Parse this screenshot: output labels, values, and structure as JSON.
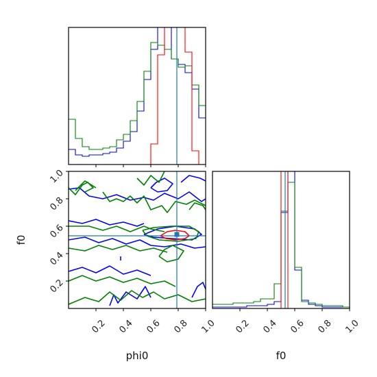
{
  "figure": {
    "type": "corner_plot"
  },
  "colors": {
    "blue": "#0000ff",
    "green": "#008000",
    "red": "#ff0000",
    "truth": "#1f77b4"
  },
  "chart_data": [
    {
      "id": "hist-phi0",
      "type": "histogram_step",
      "xlim": [
        0.0,
        1.0
      ],
      "xticks": [
        0.2,
        0.4,
        0.6,
        0.8,
        1.0
      ],
      "xtick_labels": [],
      "truth_x": 0.79,
      "series": [
        {
          "color": "blue",
          "bin_edges": [
            0.0,
            0.05,
            0.1,
            0.15,
            0.2,
            0.25,
            0.3,
            0.35,
            0.4,
            0.45,
            0.5,
            0.55,
            0.6,
            0.65,
            0.7,
            0.75,
            0.8,
            0.85,
            0.9,
            0.95,
            1.0
          ],
          "counts": [
            0.11,
            0.07,
            0.06,
            0.07,
            0.07,
            0.08,
            0.09,
            0.12,
            0.17,
            0.24,
            0.39,
            0.62,
            0.84,
            1.2,
            1.2,
            0.77,
            0.73,
            0.67,
            0.55,
            0.34
          ]
        },
        {
          "color": "green",
          "bin_edges": [
            0.0,
            0.05,
            0.1,
            0.15,
            0.2,
            0.25,
            0.3,
            0.35,
            0.4,
            0.45,
            0.5,
            0.55,
            0.6,
            0.65,
            0.7,
            0.75,
            0.8,
            0.85,
            0.9,
            0.95,
            1.0
          ],
          "counts": [
            0.33,
            0.19,
            0.13,
            0.11,
            0.11,
            0.12,
            0.13,
            0.18,
            0.22,
            0.32,
            0.46,
            0.68,
            0.89,
            0.87,
            0.84,
            0.77,
            0.71,
            0.72,
            0.58,
            0.43
          ]
        },
        {
          "color": "red",
          "bin_edges": [
            0.0,
            0.05,
            0.1,
            0.15,
            0.2,
            0.25,
            0.3,
            0.35,
            0.4,
            0.45,
            0.5,
            0.55,
            0.6,
            0.65,
            0.7,
            0.75,
            0.8,
            0.85,
            0.9,
            0.95,
            1.0
          ],
          "counts": [
            0,
            0,
            0,
            0,
            0,
            0,
            0,
            0,
            0,
            0,
            0,
            0,
            0.15,
            0.8,
            1.2,
            1.2,
            1.2,
            0.82,
            0.1,
            0
          ]
        }
      ]
    },
    {
      "id": "contour-phi0-f0",
      "type": "contour",
      "xlim": [
        0.0,
        1.0
      ],
      "ylim": [
        0.0,
        1.0
      ],
      "xticks": [
        0.2,
        0.4,
        0.6,
        0.8,
        1.0
      ],
      "yticks": [
        0.2,
        0.4,
        0.6,
        0.8,
        1.0
      ],
      "ytick_labels": [
        "0.2",
        "0.4",
        "0.6",
        "0.8",
        "1.0"
      ],
      "ylabel": "f0",
      "truth": {
        "x": 0.79,
        "y": 0.53
      },
      "marker": {
        "x": 0.79,
        "y": 0.54
      },
      "contours": [
        {
          "color": "blue",
          "points": [
            [
              0.0,
              0.87
            ],
            [
              0.08,
              0.88
            ],
            [
              0.15,
              0.82
            ],
            [
              0.25,
              0.8
            ],
            [
              0.35,
              0.83
            ],
            [
              0.45,
              0.79
            ],
            [
              0.55,
              0.81
            ],
            [
              0.62,
              0.79
            ],
            [
              0.7,
              0.84
            ],
            [
              0.8,
              0.8
            ],
            [
              0.88,
              0.85
            ],
            [
              0.97,
              0.78
            ],
            [
              1.0,
              0.8
            ]
          ]
        },
        {
          "color": "blue",
          "points": [
            [
              0.0,
              0.64
            ],
            [
              0.1,
              0.62
            ],
            [
              0.2,
              0.65
            ],
            [
              0.3,
              0.61
            ],
            [
              0.4,
              0.63
            ],
            [
              0.5,
              0.6
            ],
            [
              0.55,
              0.62
            ]
          ]
        },
        {
          "color": "blue",
          "points": [
            [
              0.0,
              0.5
            ],
            [
              0.12,
              0.52
            ],
            [
              0.22,
              0.48
            ],
            [
              0.32,
              0.51
            ],
            [
              0.42,
              0.47
            ],
            [
              0.52,
              0.5
            ],
            [
              0.6,
              0.46
            ],
            [
              0.7,
              0.45
            ],
            [
              0.82,
              0.47
            ],
            [
              0.92,
              0.44
            ],
            [
              1.0,
              0.45
            ]
          ]
        },
        {
          "color": "blue",
          "points": [
            [
              0.0,
              0.27
            ],
            [
              0.1,
              0.3
            ],
            [
              0.2,
              0.26
            ],
            [
              0.3,
              0.31
            ],
            [
              0.4,
              0.25
            ],
            [
              0.5,
              0.28
            ],
            [
              0.6,
              0.24
            ]
          ]
        },
        {
          "color": "blue",
          "points": [
            [
              0.3,
              0.02
            ],
            [
              0.33,
              0.1
            ],
            [
              0.36,
              0.04
            ],
            [
              0.42,
              0.12
            ],
            [
              0.5,
              0.07
            ],
            [
              0.56,
              0.16
            ],
            [
              0.6,
              0.08
            ]
          ]
        },
        {
          "color": "blue",
          "points": [
            [
              0.9,
              0.08
            ],
            [
              0.94,
              0.16
            ],
            [
              0.98,
              0.19
            ],
            [
              1.0,
              0.14
            ]
          ]
        },
        {
          "color": "blue",
          "points": [
            [
              0.55,
              0.54
            ],
            [
              0.65,
              0.58
            ],
            [
              0.78,
              0.6
            ],
            [
              0.92,
              0.58
            ],
            [
              0.97,
              0.54
            ],
            [
              0.9,
              0.5
            ],
            [
              0.75,
              0.51
            ],
            [
              0.62,
              0.52
            ],
            [
              0.55,
              0.54
            ]
          ]
        },
        {
          "color": "blue",
          "points": [
            [
              0.38,
              0.35
            ],
            [
              0.38,
              0.38
            ]
          ]
        },
        {
          "color": "blue",
          "points": [
            [
              0.6,
              0.88
            ],
            [
              0.64,
              0.92
            ],
            [
              0.7,
              0.95
            ],
            [
              0.76,
              0.91
            ],
            [
              0.72,
              0.86
            ],
            [
              0.65,
              0.85
            ],
            [
              0.6,
              0.88
            ]
          ]
        },
        {
          "color": "blue",
          "points": [
            [
              0.82,
              0.92
            ],
            [
              0.88,
              0.97
            ],
            [
              0.96,
              0.95
            ],
            [
              1.0,
              0.93
            ]
          ]
        },
        {
          "color": "green",
          "points": [
            [
              0.0,
              0.88
            ],
            [
              0.05,
              0.83
            ],
            [
              0.1,
              0.9
            ],
            [
              0.14,
              0.92
            ],
            [
              0.18,
              0.88
            ],
            [
              0.12,
              0.85
            ]
          ]
        },
        {
          "color": "green",
          "points": [
            [
              0.25,
              0.85
            ],
            [
              0.3,
              0.78
            ],
            [
              0.35,
              0.8
            ],
            [
              0.4,
              0.78
            ],
            [
              0.45,
              0.82
            ],
            [
              0.5,
              0.77
            ],
            [
              0.55,
              0.82
            ],
            [
              0.6,
              0.72
            ],
            [
              0.68,
              0.75
            ],
            [
              0.72,
              0.7
            ],
            [
              0.78,
              0.78
            ],
            [
              0.86,
              0.76
            ],
            [
              0.92,
              0.79
            ],
            [
              1.0,
              0.75
            ]
          ]
        },
        {
          "color": "green",
          "points": [
            [
              0.0,
              0.6
            ],
            [
              0.15,
              0.6
            ],
            [
              0.25,
              0.57
            ],
            [
              0.35,
              0.6
            ],
            [
              0.45,
              0.56
            ],
            [
              0.55,
              0.6
            ],
            [
              0.6,
              0.58
            ],
            [
              0.7,
              0.56
            ]
          ]
        },
        {
          "color": "green",
          "points": [
            [
              0.0,
              0.44
            ],
            [
              0.12,
              0.42
            ],
            [
              0.22,
              0.46
            ],
            [
              0.32,
              0.43
            ],
            [
              0.42,
              0.46
            ],
            [
              0.52,
              0.42
            ],
            [
              0.62,
              0.44
            ],
            [
              0.72,
              0.41
            ]
          ]
        },
        {
          "color": "green",
          "points": [
            [
              0.0,
              0.2
            ],
            [
              0.1,
              0.24
            ],
            [
              0.2,
              0.2
            ],
            [
              0.3,
              0.23
            ],
            [
              0.4,
              0.19
            ],
            [
              0.5,
              0.22
            ],
            [
              0.6,
              0.18
            ],
            [
              0.7,
              0.2
            ],
            [
              0.78,
              0.16
            ]
          ]
        },
        {
          "color": "green",
          "points": [
            [
              0.0,
              0.03
            ],
            [
              0.12,
              0.08
            ],
            [
              0.22,
              0.05
            ],
            [
              0.3,
              0.12
            ],
            [
              0.38,
              0.06
            ],
            [
              0.46,
              0.13
            ],
            [
              0.54,
              0.08
            ],
            [
              0.62,
              0.12
            ],
            [
              0.7,
              0.07
            ],
            [
              0.8,
              0.1
            ],
            [
              0.9,
              0.05
            ],
            [
              1.0,
              0.07
            ]
          ]
        },
        {
          "color": "green",
          "points": [
            [
              0.05,
              0.86
            ],
            [
              0.12,
              0.93
            ],
            [
              0.2,
              0.88
            ]
          ]
        },
        {
          "color": "green",
          "points": [
            [
              0.5,
              0.95
            ],
            [
              0.55,
              0.9
            ],
            [
              0.6,
              0.97
            ],
            [
              0.66,
              0.92
            ],
            [
              0.7,
              1.0
            ]
          ]
        },
        {
          "color": "green",
          "points": [
            [
              0.88,
              0.72
            ],
            [
              0.92,
              0.77
            ],
            [
              0.98,
              0.75
            ],
            [
              1.0,
              0.72
            ]
          ]
        },
        {
          "color": "green",
          "points": [
            [
              0.54,
              0.57
            ],
            [
              0.62,
              0.59
            ],
            [
              0.75,
              0.6
            ],
            [
              0.88,
              0.6
            ],
            [
              0.95,
              0.56
            ],
            [
              0.93,
              0.51
            ],
            [
              0.8,
              0.49
            ],
            [
              0.66,
              0.5
            ],
            [
              0.57,
              0.53
            ],
            [
              0.54,
              0.57
            ]
          ]
        },
        {
          "color": "green",
          "points": [
            [
              0.66,
              0.38
            ],
            [
              0.7,
              0.43
            ],
            [
              0.76,
              0.46
            ],
            [
              0.84,
              0.42
            ],
            [
              0.8,
              0.36
            ],
            [
              0.72,
              0.34
            ],
            [
              0.66,
              0.38
            ]
          ]
        },
        {
          "color": "red",
          "points": [
            [
              0.67,
              0.53
            ],
            [
              0.72,
              0.56
            ],
            [
              0.78,
              0.57
            ],
            [
              0.85,
              0.56
            ],
            [
              0.88,
              0.53
            ],
            [
              0.85,
              0.51
            ],
            [
              0.78,
              0.5
            ],
            [
              0.71,
              0.51
            ],
            [
              0.67,
              0.53
            ]
          ]
        }
      ]
    },
    {
      "id": "hist-f0",
      "type": "histogram_step",
      "xlim": [
        0.0,
        1.0
      ],
      "xticks": [
        0.2,
        0.4,
        0.6,
        0.8,
        1.0
      ],
      "xtick_labels": [
        "0.2",
        "0.4",
        "0.6",
        "0.8",
        "1.0"
      ],
      "xlabel": "f0",
      "truth_x": 0.53,
      "series": [
        {
          "color": "blue",
          "bin_edges": [
            0.0,
            0.05,
            0.1,
            0.15,
            0.2,
            0.25,
            0.3,
            0.35,
            0.4,
            0.45,
            0.5,
            0.55,
            0.6,
            0.65,
            0.7,
            0.75,
            0.8,
            0.85,
            0.9,
            0.95,
            1.0
          ],
          "counts": [
            0.01,
            0.01,
            0.01,
            0.01,
            0.01,
            0.02,
            0.02,
            0.02,
            0.03,
            0.05,
            0.7,
            1.3,
            0.28,
            0.06,
            0.03,
            0.02,
            0.01,
            0.01,
            0.01,
            0.01
          ]
        },
        {
          "color": "green",
          "bin_edges": [
            0.0,
            0.05,
            0.1,
            0.15,
            0.2,
            0.25,
            0.3,
            0.35,
            0.4,
            0.45,
            0.5,
            0.55,
            0.6,
            0.65,
            0.7,
            0.75,
            0.8,
            0.85,
            0.9,
            0.95,
            1.0
          ],
          "counts": [
            0.03,
            0.03,
            0.03,
            0.04,
            0.04,
            0.04,
            0.05,
            0.07,
            0.07,
            0.18,
            0.71,
            0.92,
            0.3,
            0.05,
            0.04,
            0.03,
            0.02,
            0.02,
            0.02,
            0.01
          ]
        },
        {
          "color": "red",
          "bin_edges": [
            0.5,
            0.55
          ],
          "counts": [
            1.3
          ]
        }
      ]
    }
  ],
  "axes": {
    "bottom_left_xtick_labels": [
      "0.2",
      "0.4",
      "0.6",
      "0.8",
      "1.0"
    ],
    "bottom_left_xlabel": "phi0"
  }
}
